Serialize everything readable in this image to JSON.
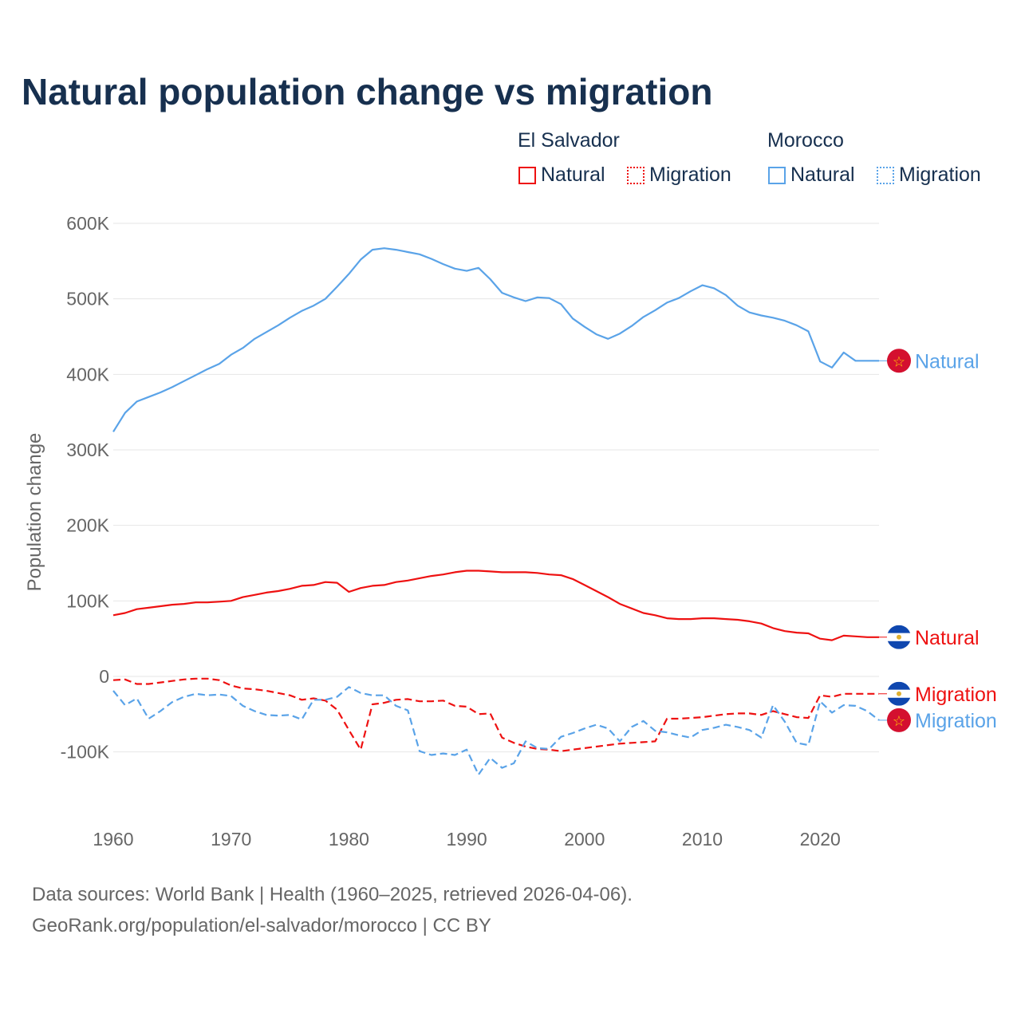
{
  "title": "Natural population change vs migration",
  "legend": {
    "groups": [
      {
        "name": "El Salvador",
        "items": [
          {
            "label": "Natural",
            "style": "solid"
          },
          {
            "label": "Migration",
            "style": "dotted"
          }
        ],
        "color": "#ee1111"
      },
      {
        "name": "Morocco",
        "items": [
          {
            "label": "Natural",
            "style": "solid"
          },
          {
            "label": "Migration",
            "style": "dotted"
          }
        ],
        "color": "#5aa3e8"
      }
    ]
  },
  "footer": {
    "line1": "Data sources: World Bank | Health (1960–2025, retrieved 2026-04-06).",
    "line2": "GeoRank.org/population/el-salvador/morocco | CC BY"
  },
  "chart_data": {
    "type": "line",
    "title": "Natural population change vs migration",
    "xlabel": "",
    "ylabel": "Population change",
    "xlim": [
      1960,
      2025
    ],
    "ylim": [
      -150000,
      600000
    ],
    "x_ticks": [
      1960,
      1970,
      1980,
      1990,
      2000,
      2010,
      2020
    ],
    "y_ticks": [
      {
        "v": 600000,
        "label": "600K"
      },
      {
        "v": 500000,
        "label": "500K"
      },
      {
        "v": 400000,
        "label": "400K"
      },
      {
        "v": 300000,
        "label": "300K"
      },
      {
        "v": 200000,
        "label": "200K"
      },
      {
        "v": 100000,
        "label": "100K"
      },
      {
        "v": 0,
        "label": "0"
      },
      {
        "v": -100000,
        "label": "-100K"
      }
    ],
    "grid": true,
    "x_start": 1960,
    "units": "thousands",
    "series": [
      {
        "name": "Morocco Natural",
        "label": "Natural",
        "country": "Morocco",
        "color": "#5aa3e8",
        "dash": "none",
        "values": [
          324,
          349,
          364,
          370,
          376,
          383,
          391,
          399,
          407,
          414,
          426,
          435,
          447,
          456,
          465,
          475,
          484,
          491,
          500,
          516,
          533,
          552,
          565,
          567,
          565,
          562,
          559,
          553,
          546,
          540,
          537,
          541,
          526,
          508,
          502,
          497,
          502,
          501,
          493,
          474,
          463,
          453,
          447,
          454,
          464,
          476,
          485,
          495,
          501,
          510,
          518,
          514,
          505,
          491,
          482,
          478,
          475,
          471,
          465,
          457,
          417,
          409,
          429,
          418,
          418,
          418
        ]
      },
      {
        "name": "El Salvador Natural",
        "label": "Natural",
        "country": "El Salvador",
        "color": "#ee1111",
        "dash": "none",
        "values": [
          81,
          84,
          89,
          91,
          93,
          95,
          96,
          98,
          98,
          99,
          100,
          105,
          108,
          111,
          113,
          116,
          120,
          121,
          125,
          124,
          112,
          117,
          120,
          121,
          125,
          127,
          130,
          133,
          135,
          138,
          140,
          140,
          139,
          138,
          138,
          138,
          137,
          135,
          134,
          129,
          121,
          113,
          105,
          96,
          90,
          84,
          81,
          77,
          76,
          76,
          77,
          77,
          76,
          75,
          73,
          70,
          64,
          60,
          58,
          57,
          50,
          48,
          54,
          53,
          52,
          52
        ]
      },
      {
        "name": "El Salvador Migration",
        "label": "Migration",
        "country": "El Salvador",
        "color": "#ee1111",
        "dash": "dashed",
        "values": [
          -5,
          -4,
          -10,
          -10,
          -8,
          -6,
          -4,
          -3,
          -3,
          -5,
          -12,
          -16,
          -17,
          -19,
          -22,
          -25,
          -31,
          -29,
          -32,
          -44,
          -71,
          -97,
          -37,
          -35,
          -31,
          -30,
          -33,
          -33,
          -32,
          -39,
          -40,
          -50,
          -49,
          -81,
          -88,
          -93,
          -96,
          -97,
          -99,
          -97,
          -95,
          -93,
          -91,
          -89,
          -88,
          -87,
          -86,
          -56,
          -56,
          -55,
          -54,
          -52,
          -50,
          -49,
          -49,
          -51,
          -46,
          -50,
          -54,
          -55,
          -25,
          -27,
          -23,
          -23,
          -23,
          -23
        ]
      },
      {
        "name": "Morocco Migration",
        "label": "Migration",
        "country": "Morocco",
        "color": "#5aa3e8",
        "dash": "dashed",
        "values": [
          -19,
          -38,
          -29,
          -56,
          -46,
          -34,
          -27,
          -23,
          -25,
          -24,
          -26,
          -39,
          -46,
          -51,
          -52,
          -51,
          -57,
          -31,
          -31,
          -27,
          -14,
          -22,
          -25,
          -25,
          -39,
          -45,
          -99,
          -104,
          -102,
          -104,
          -97,
          -130,
          -108,
          -121,
          -115,
          -86,
          -95,
          -96,
          -80,
          -75,
          -69,
          -64,
          -69,
          -86,
          -67,
          -59,
          -72,
          -74,
          -78,
          -81,
          -71,
          -68,
          -64,
          -67,
          -71,
          -81,
          -38,
          -60,
          -88,
          -91,
          -33,
          -48,
          -38,
          -39,
          -46,
          -58
        ]
      }
    ]
  }
}
